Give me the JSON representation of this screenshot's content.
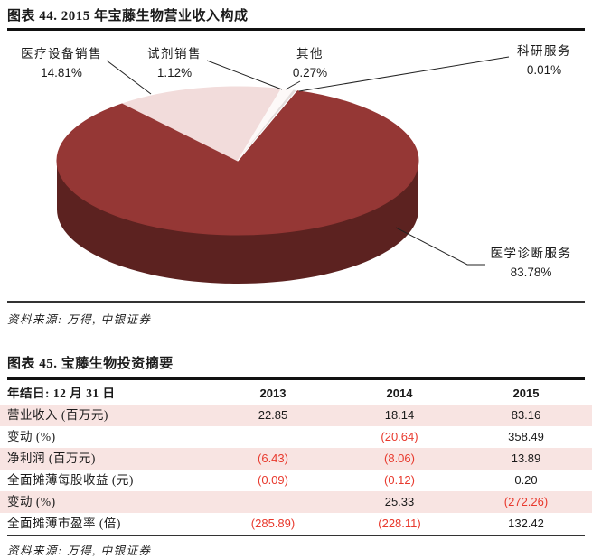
{
  "chart_data": [
    {
      "type": "pie",
      "is_3d": true,
      "title": "图表 44. 2015 年宝藤生物营业收入构成",
      "labels": [
        "医学诊断服务",
        "医疗设备销售",
        "试剂销售",
        "其他",
        "科研服务"
      ],
      "values": [
        83.78,
        14.81,
        1.12,
        0.27,
        0.01
      ],
      "percent_labels": [
        "83.78%",
        "14.81%",
        "1.12%",
        "0.27%",
        "0.01%"
      ],
      "colors": [
        "#953735",
        "#F2DCDB",
        "#FDF9F8",
        "#E3DDDC",
        "#FFFFFF"
      ],
      "side_color": "#5C2220",
      "start_angle_deg": 19,
      "legend_position": "none",
      "source": "资料来源: 万得, 中银证券"
    },
    {
      "type": "table",
      "title": "图表 45. 宝藤生物投资摘要",
      "columns": [
        "年结日: 12 月 31 日",
        "2013",
        "2014",
        "2015"
      ],
      "rows": [
        [
          "营业收入 (百万元)",
          "22.85",
          "18.14",
          "83.16"
        ],
        [
          "变动 (%)",
          "",
          "(20.64)",
          "358.49"
        ],
        [
          "净利润 (百万元)",
          "(6.43)",
          "(8.06)",
          "13.89"
        ],
        [
          "全面摊薄每股收益 (元)",
          "(0.09)",
          "(0.12)",
          "0.20"
        ],
        [
          "变动 (%)",
          "",
          "25.33",
          "(272.26)"
        ],
        [
          "全面摊薄市盈率 (倍)",
          "(285.89)",
          "(228.11)",
          "132.42"
        ]
      ],
      "negative_color": "#E8392D",
      "row_stripe_color": "#F8E4E2",
      "source": "资料来源: 万得, 中银证券"
    }
  ]
}
